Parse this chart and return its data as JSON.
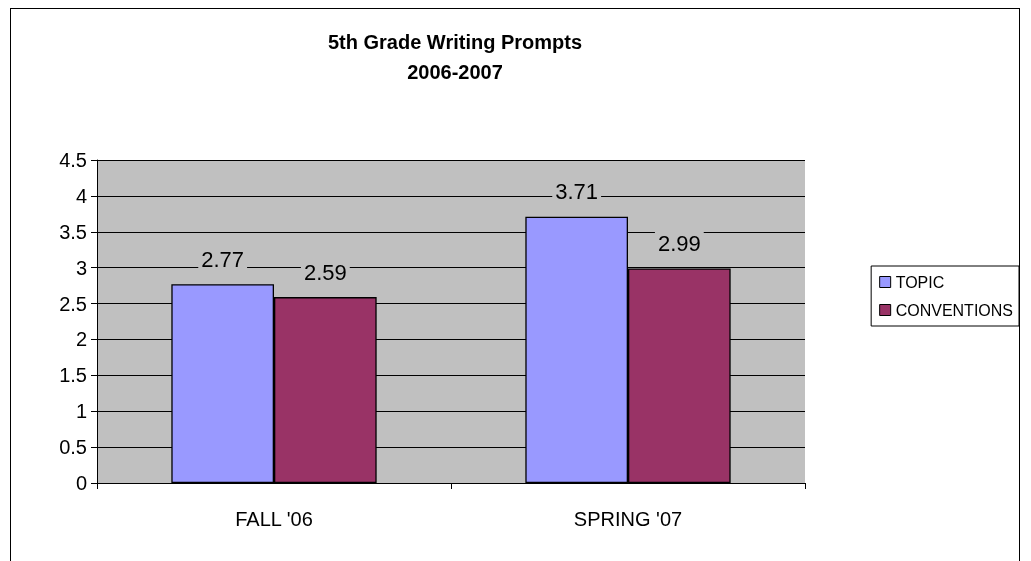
{
  "chart_data": {
    "type": "bar",
    "title": "5th Grade Writing Prompts\n2006-2007",
    "categories": [
      "FALL '06",
      "SPRING '07"
    ],
    "series": [
      {
        "name": "TOPIC",
        "color": "#9999ff",
        "values": [
          2.77,
          3.71
        ]
      },
      {
        "name": "CONVENTIONS",
        "color": "#993366",
        "values": [
          2.59,
          2.99
        ]
      }
    ],
    "ylim": [
      0,
      4.5
    ],
    "yticks": [
      0,
      0.5,
      1,
      1.5,
      2,
      2.5,
      3,
      3.5,
      4,
      4.5
    ],
    "grid": "y",
    "legend": "right",
    "data_labels": true
  }
}
